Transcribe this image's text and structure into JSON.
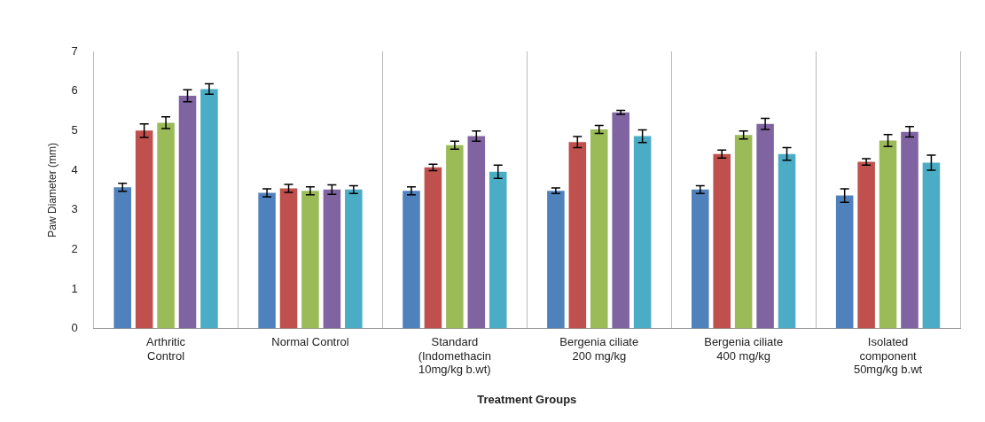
{
  "chart_data": {
    "type": "bar",
    "xlabel": "Treatment Groups",
    "ylabel": "Paw Diameter (mm)",
    "categories": [
      "Arthritic Control",
      "Normal Control",
      "Standard (Indomethacin 10mg/kg b.wt)",
      "Bergenia ciliate 200 mg/kg",
      "Bergenia ciliate 400 mg/kg",
      "Isolated component 50mg/kg b.wt"
    ],
    "series": [
      {
        "color": "#4f81bd",
        "values": [
          3.57,
          3.43,
          3.48,
          3.48,
          3.51,
          3.36
        ],
        "errors": [
          0.1,
          0.1,
          0.1,
          0.07,
          0.1,
          0.17
        ]
      },
      {
        "color": "#c0504d",
        "values": [
          5.0,
          3.54,
          4.07,
          4.71,
          4.41,
          4.21
        ],
        "errors": [
          0.17,
          0.1,
          0.08,
          0.14,
          0.1,
          0.08
        ]
      },
      {
        "color": "#9bbb59",
        "values": [
          5.2,
          3.48,
          4.63,
          5.03,
          4.89,
          4.75
        ],
        "errors": [
          0.15,
          0.1,
          0.1,
          0.1,
          0.1,
          0.15
        ]
      },
      {
        "color": "#8064a2",
        "values": [
          5.88,
          3.51,
          4.86,
          5.46,
          5.17,
          4.97
        ],
        "errors": [
          0.15,
          0.12,
          0.13,
          0.05,
          0.14,
          0.13
        ]
      },
      {
        "color": "#4bacc6",
        "values": [
          6.05,
          3.51,
          3.96,
          4.86,
          4.41,
          4.19
        ],
        "errors": [
          0.13,
          0.1,
          0.17,
          0.16,
          0.16,
          0.19
        ]
      }
    ],
    "ylim": [
      0,
      7
    ],
    "yticks": [
      0,
      1,
      2,
      3,
      4,
      5,
      6,
      7
    ],
    "grid": "x",
    "legend": false
  }
}
